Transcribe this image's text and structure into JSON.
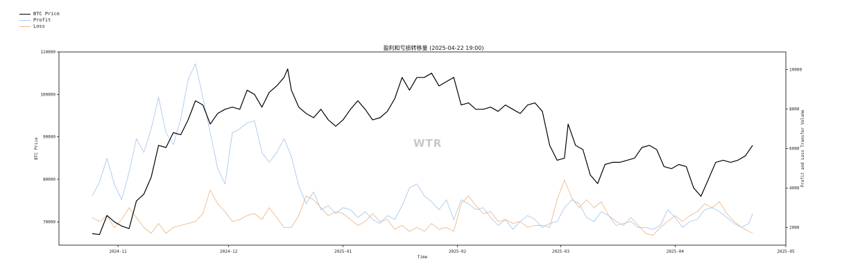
{
  "chart_data": {
    "type": "line",
    "title": "盈利和亏损转移量 (2025-04-22 19:00)",
    "xlabel": "Time",
    "ylabel_left": "BTC Price",
    "ylabel_right": "Profit and Loss Transfer Volume",
    "watermark": "WTR",
    "x_range": [
      "2024-10-16",
      "2025-05-01"
    ],
    "ylim_left": [
      64500,
      110000
    ],
    "ylim_right": [
      1100,
      10900
    ],
    "x_ticks": [
      "2024-11",
      "2024-12",
      "2025-01",
      "2025-02",
      "2025-03",
      "2025-04",
      "2025-05"
    ],
    "y_ticks_left": [
      70000,
      80000,
      90000,
      100000,
      110000
    ],
    "y_ticks_right": [
      2000,
      4000,
      6000,
      8000,
      10000
    ],
    "grid": false,
    "legend": "top-left (outside plot)",
    "series": [
      {
        "name": "BTC Price",
        "axis": "left",
        "color": "#000000",
        "x": [
          "2024-10-25",
          "2024-10-27",
          "2024-10-29",
          "2024-10-31",
          "2024-11-02",
          "2024-11-04",
          "2024-11-06",
          "2024-11-08",
          "2024-11-10",
          "2024-11-12",
          "2024-11-14",
          "2024-11-16",
          "2024-11-18",
          "2024-11-20",
          "2024-11-22",
          "2024-11-24",
          "2024-11-26",
          "2024-11-28",
          "2024-11-30",
          "2024-12-02",
          "2024-12-04",
          "2024-12-06",
          "2024-12-08",
          "2024-12-10",
          "2024-12-12",
          "2024-12-14",
          "2024-12-16",
          "2024-12-17",
          "2024-12-18",
          "2024-12-20",
          "2024-12-22",
          "2024-12-24",
          "2024-12-26",
          "2024-12-28",
          "2024-12-30",
          "2025-01-01",
          "2025-01-03",
          "2025-01-05",
          "2025-01-07",
          "2025-01-09",
          "2025-01-11",
          "2025-01-13",
          "2025-01-15",
          "2025-01-17",
          "2025-01-19",
          "2025-01-21",
          "2025-01-23",
          "2025-01-25",
          "2025-01-27",
          "2025-01-29",
          "2025-01-31",
          "2025-02-02",
          "2025-02-04",
          "2025-02-06",
          "2025-02-08",
          "2025-02-10",
          "2025-02-12",
          "2025-02-14",
          "2025-02-16",
          "2025-02-18",
          "2025-02-20",
          "2025-02-22",
          "2025-02-24",
          "2025-02-26",
          "2025-02-28",
          "2025-03-02",
          "2025-03-03",
          "2025-03-05",
          "2025-03-07",
          "2025-03-09",
          "2025-03-11",
          "2025-03-13",
          "2025-03-15",
          "2025-03-17",
          "2025-03-19",
          "2025-03-21",
          "2025-03-23",
          "2025-03-25",
          "2025-03-27",
          "2025-03-29",
          "2025-03-31",
          "2025-04-02",
          "2025-04-04",
          "2025-04-06",
          "2025-04-08",
          "2025-04-10",
          "2025-04-12",
          "2025-04-14",
          "2025-04-16",
          "2025-04-18",
          "2025-04-20",
          "2025-04-22"
        ],
        "values": [
          67200,
          67000,
          71500,
          70000,
          69000,
          68400,
          74900,
          76500,
          80500,
          88000,
          87500,
          91000,
          90500,
          94000,
          98500,
          97500,
          93000,
          95500,
          96500,
          97000,
          96500,
          101000,
          100000,
          97000,
          100500,
          102000,
          104000,
          106000,
          101000,
          97000,
          95500,
          94500,
          96500,
          94000,
          92500,
          94000,
          96500,
          98500,
          96500,
          94000,
          94500,
          96000,
          99000,
          104000,
          101000,
          104000,
          104000,
          105000,
          102000,
          103000,
          104000,
          97500,
          98000,
          96500,
          96500,
          97000,
          96000,
          97500,
          96500,
          95500,
          97500,
          98000,
          96000,
          88000,
          84500,
          85000,
          93000,
          88000,
          87000,
          81000,
          79000,
          83500,
          84000,
          84000,
          84500,
          85000,
          87500,
          88000,
          87000,
          83000,
          82500,
          83500,
          83000,
          78000,
          76000,
          80000,
          84000,
          84500,
          84000,
          84500,
          85500,
          88000
        ]
      },
      {
        "name": "Profit",
        "axis": "right",
        "color": "#a9c8f0",
        "x": [
          "2024-10-25",
          "2024-10-27",
          "2024-10-29",
          "2024-10-31",
          "2024-11-02",
          "2024-11-04",
          "2024-11-06",
          "2024-11-08",
          "2024-11-10",
          "2024-11-12",
          "2024-11-14",
          "2024-11-16",
          "2024-11-18",
          "2024-11-20",
          "2024-11-22",
          "2024-11-24",
          "2024-11-26",
          "2024-11-28",
          "2024-11-30",
          "2024-12-02",
          "2024-12-04",
          "2024-12-06",
          "2024-12-08",
          "2024-12-10",
          "2024-12-12",
          "2024-12-14",
          "2024-12-16",
          "2024-12-18",
          "2024-12-20",
          "2024-12-22",
          "2024-12-24",
          "2024-12-26",
          "2024-12-28",
          "2024-12-30",
          "2025-01-01",
          "2025-01-03",
          "2025-01-05",
          "2025-01-07",
          "2025-01-09",
          "2025-01-11",
          "2025-01-13",
          "2025-01-15",
          "2025-01-17",
          "2025-01-19",
          "2025-01-21",
          "2025-01-23",
          "2025-01-25",
          "2025-01-27",
          "2025-01-29",
          "2025-01-31",
          "2025-02-02",
          "2025-02-04",
          "2025-02-06",
          "2025-02-08",
          "2025-02-10",
          "2025-02-12",
          "2025-02-14",
          "2025-02-16",
          "2025-02-18",
          "2025-02-20",
          "2025-02-22",
          "2025-02-24",
          "2025-02-26",
          "2025-02-28",
          "2025-03-02",
          "2025-03-04",
          "2025-03-06",
          "2025-03-08",
          "2025-03-10",
          "2025-03-12",
          "2025-03-14",
          "2025-03-16",
          "2025-03-18",
          "2025-03-20",
          "2025-03-22",
          "2025-03-24",
          "2025-03-26",
          "2025-03-28",
          "2025-03-30",
          "2025-04-01",
          "2025-04-03",
          "2025-04-05",
          "2025-04-07",
          "2025-04-09",
          "2025-04-11",
          "2025-04-13",
          "2025-04-15",
          "2025-04-17",
          "2025-04-19",
          "2025-04-21",
          "2025-04-22"
        ],
        "values": [
          3600,
          4300,
          5500,
          4200,
          3400,
          4800,
          6500,
          5800,
          7000,
          8600,
          6800,
          6200,
          7500,
          9500,
          10300,
          8600,
          6800,
          5000,
          4200,
          6800,
          7000,
          7300,
          7400,
          5800,
          5300,
          5800,
          6500,
          5600,
          4100,
          3200,
          3800,
          2900,
          3100,
          2700,
          3000,
          2900,
          2500,
          2800,
          2400,
          2200,
          2600,
          2400,
          3100,
          4000,
          4200,
          3600,
          3300,
          2900,
          3400,
          2400,
          3400,
          3200,
          2900,
          3000,
          2500,
          2100,
          2400,
          1900,
          2300,
          2600,
          2400,
          2000,
          2200,
          2300,
          3000,
          3400,
          3200,
          2500,
          2300,
          2800,
          2600,
          2100,
          2200,
          2300,
          2000,
          2000,
          1900,
          2100,
          2900,
          2500,
          2000,
          2300,
          2400,
          2900,
          3000,
          2800,
          2500,
          2200,
          2000,
          2200,
          2700
        ]
      },
      {
        "name": "Loss",
        "axis": "right",
        "color": "#f0b88a",
        "x": [
          "2024-10-25",
          "2024-10-27",
          "2024-10-29",
          "2024-10-31",
          "2024-11-02",
          "2024-11-04",
          "2024-11-06",
          "2024-11-08",
          "2024-11-10",
          "2024-11-12",
          "2024-11-14",
          "2024-11-16",
          "2024-11-18",
          "2024-11-20",
          "2024-11-22",
          "2024-11-24",
          "2024-11-26",
          "2024-11-28",
          "2024-11-30",
          "2024-12-02",
          "2024-12-04",
          "2024-12-06",
          "2024-12-08",
          "2024-12-10",
          "2024-12-12",
          "2024-12-14",
          "2024-12-16",
          "2024-12-18",
          "2024-12-20",
          "2024-12-22",
          "2024-12-24",
          "2024-12-26",
          "2024-12-28",
          "2024-12-30",
          "2025-01-01",
          "2025-01-03",
          "2025-01-05",
          "2025-01-07",
          "2025-01-09",
          "2025-01-11",
          "2025-01-13",
          "2025-01-15",
          "2025-01-17",
          "2025-01-19",
          "2025-01-21",
          "2025-01-23",
          "2025-01-25",
          "2025-01-27",
          "2025-01-29",
          "2025-01-31",
          "2025-02-02",
          "2025-02-04",
          "2025-02-06",
          "2025-02-08",
          "2025-02-10",
          "2025-02-12",
          "2025-02-14",
          "2025-02-16",
          "2025-02-18",
          "2025-02-20",
          "2025-02-22",
          "2025-02-24",
          "2025-02-26",
          "2025-02-28",
          "2025-03-02",
          "2025-03-04",
          "2025-03-06",
          "2025-03-08",
          "2025-03-10",
          "2025-03-12",
          "2025-03-14",
          "2025-03-16",
          "2025-03-18",
          "2025-03-20",
          "2025-03-22",
          "2025-03-24",
          "2025-03-26",
          "2025-03-28",
          "2025-03-30",
          "2025-04-01",
          "2025-04-03",
          "2025-04-05",
          "2025-04-07",
          "2025-04-09",
          "2025-04-11",
          "2025-04-13",
          "2025-04-15",
          "2025-04-17",
          "2025-04-19",
          "2025-04-21",
          "2025-04-22"
        ],
        "values": [
          2500,
          2300,
          2600,
          2000,
          2400,
          3000,
          2500,
          2000,
          1700,
          2200,
          1700,
          2000,
          2100,
          2200,
          2300,
          2700,
          3900,
          3200,
          2800,
          2300,
          2400,
          2600,
          2700,
          2400,
          3000,
          2500,
          2000,
          2000,
          2600,
          3600,
          3400,
          3000,
          2600,
          2800,
          2700,
          2400,
          2100,
          2300,
          2700,
          2300,
          2400,
          1900,
          2100,
          1800,
          2000,
          1800,
          2200,
          1900,
          2000,
          1800,
          3200,
          3600,
          3100,
          2700,
          2800,
          2300,
          2400,
          2200,
          2300,
          2000,
          2100,
          2100,
          2000,
          3400,
          4400,
          3500,
          3000,
          3400,
          3000,
          3300,
          2600,
          2300,
          2100,
          2500,
          2100,
          1700,
          1600,
          2000,
          2300,
          2600,
          2300,
          2600,
          2800,
          3200,
          3000,
          3300,
          2700,
          2300,
          2000,
          1800,
          1700
        ]
      }
    ]
  }
}
